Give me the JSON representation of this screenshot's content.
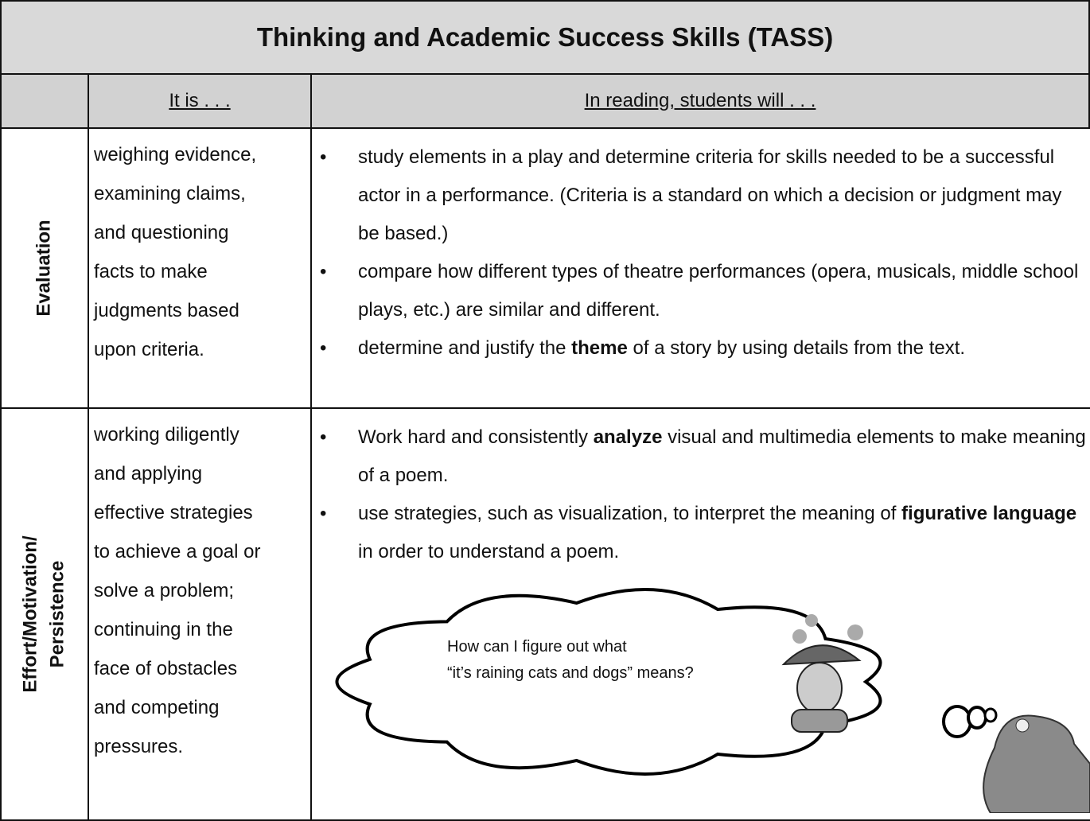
{
  "title": "Thinking and Academic Success Skills (TASS)",
  "header": {
    "col2": "It is . . .",
    "col3": "In reading, students will . . ."
  },
  "rows": [
    {
      "label": [
        "Evaluation"
      ],
      "description": [
        "weighing evidence,",
        "examining claims,",
        "and questioning",
        "facts to make",
        "judgments based",
        "upon criteria."
      ],
      "bullets": [
        [
          "study elements in a play and determine criteria for skills needed to be a successful actor in a performance.  (Criteria is a standard on which a decision or judgment may be based.)"
        ],
        [
          "compare how different types of theatre performances (opera, musicals, middle school plays, etc.) are similar and different."
        ],
        [
          "determine and justify the ",
          {
            "bold": "theme"
          },
          " of a story by using details from the text."
        ]
      ]
    },
    {
      "label": [
        "Effort/Motivation/",
        "Persistence"
      ],
      "description": [
        "working diligently",
        "and applying",
        "effective strategies",
        "to achieve a goal or",
        "solve a problem;",
        "continuing in the",
        "face of obstacles",
        "and competing",
        "pressures."
      ],
      "bullets": [
        [
          "Work hard and consistently ",
          {
            "bold": "analyze"
          },
          " visual and multimedia elements to make meaning of a poem."
        ],
        [
          "use strategies, such as visualization, to interpret  the meaning of ",
          {
            "bold": "figurative language"
          },
          " in order to understand a poem."
        ]
      ]
    }
  ],
  "thought": [
    "How can I figure out what",
    "“it’s raining cats and dogs” means?"
  ]
}
